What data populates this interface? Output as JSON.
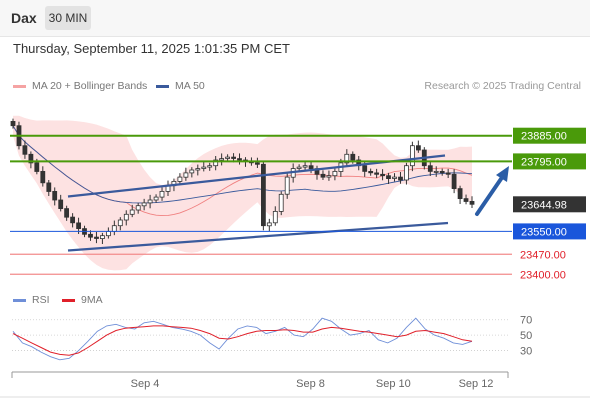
{
  "header": {
    "title": "Dax",
    "interval": "30 MIN"
  },
  "timestamp": "Thursday, September 11, 2025 1:01:35 PM CET",
  "legend": {
    "ma20": "MA 20 + Bollinger Bands",
    "ma50": "MA 50",
    "copyright": "Research © 2025 Trading Central",
    "rsi": "RSI",
    "rsi_ma": "9MA"
  },
  "colors": {
    "bollinger_fill": "#fde2e2",
    "ma20": "#f08080",
    "ma50": "#3a5a9c",
    "candle": "#333333",
    "channel": "#3a5a9c",
    "resistance": "#4a9a0a",
    "support_blue": "#1a56db",
    "support_red": "#f28b8b",
    "forecast_arrow": "#2b5da6",
    "rsi": "#6f8fd8",
    "rsi_ma": "#e0202a",
    "current": "#333333"
  },
  "chart_data": [
    {
      "type": "candlestick",
      "x_tick_labels": [
        "Sep 4",
        "Sep 8",
        "Sep 10",
        "Sep 12"
      ],
      "x_tick_dates": [
        "2025-09-04",
        "2025-09-08",
        "2025-09-10",
        "2025-09-12"
      ],
      "ylim": [
        23380,
        24010
      ],
      "close_series": [
        23920,
        23850,
        23820,
        23790,
        23760,
        23720,
        23690,
        23660,
        23630,
        23600,
        23580,
        23560,
        23540,
        23530,
        23525,
        23535,
        23550,
        23570,
        23590,
        23610,
        23625,
        23640,
        23650,
        23660,
        23670,
        23690,
        23710,
        23725,
        23740,
        23755,
        23765,
        23770,
        23775,
        23780,
        23800,
        23805,
        23810,
        23805,
        23800,
        23795,
        23790,
        23785,
        23570,
        23580,
        23620,
        23680,
        23740,
        23770,
        23775,
        23780,
        23770,
        23750,
        23740,
        23745,
        23760,
        23790,
        23820,
        23800,
        23780,
        23760,
        23755,
        23750,
        23745,
        23735,
        23740,
        23730,
        23780,
        23850,
        23835,
        23780,
        23760,
        23760,
        23755,
        23750,
        23700,
        23665,
        23655,
        23645
      ],
      "levels": [
        {
          "label": "23885.00",
          "value": 23885,
          "style": "resistance"
        },
        {
          "label": "23795.00",
          "value": 23795,
          "style": "resistance"
        },
        {
          "label": "23644.98",
          "value": 23644.98,
          "style": "current"
        },
        {
          "label": "23550.00",
          "value": 23550,
          "style": "support"
        },
        {
          "label": "23470.00",
          "value": 23470,
          "style": "support_minor"
        },
        {
          "label": "23400.00",
          "value": 23400,
          "style": "support_minor"
        }
      ],
      "series": [
        {
          "name": "MA 20 + Bollinger Bands"
        },
        {
          "name": "MA 50"
        }
      ],
      "annotations": [
        "rising channel",
        "bullish forecast arrow toward 23885.00"
      ]
    },
    {
      "type": "line",
      "panel": "indicator",
      "y_tick_labels": [
        "70",
        "50",
        "30"
      ],
      "y_ticks": [
        70,
        50,
        30
      ],
      "ylim": [
        10,
        80
      ],
      "series": [
        {
          "name": "RSI",
          "values": [
            55,
            40,
            35,
            28,
            22,
            18,
            20,
            30,
            42,
            55,
            62,
            64,
            60,
            58,
            66,
            68,
            64,
            60,
            58,
            55,
            50,
            40,
            32,
            46,
            58,
            62,
            60,
            52,
            55,
            60,
            50,
            48,
            58,
            72,
            68,
            58,
            50,
            52,
            56,
            44,
            40,
            46,
            60,
            72,
            58,
            50,
            46,
            40,
            38,
            42
          ]
        },
        {
          "name": "9MA",
          "values": [
            52,
            46,
            40,
            34,
            28,
            25,
            24,
            27,
            34,
            42,
            50,
            56,
            59,
            60,
            61,
            62,
            62,
            61,
            60,
            59,
            56,
            52,
            46,
            45,
            48,
            52,
            55,
            56,
            56,
            57,
            56,
            54,
            54,
            58,
            60,
            59,
            57,
            55,
            54,
            52,
            50,
            48,
            50,
            55,
            56,
            54,
            52,
            48,
            44,
            42
          ]
        }
      ]
    }
  ]
}
